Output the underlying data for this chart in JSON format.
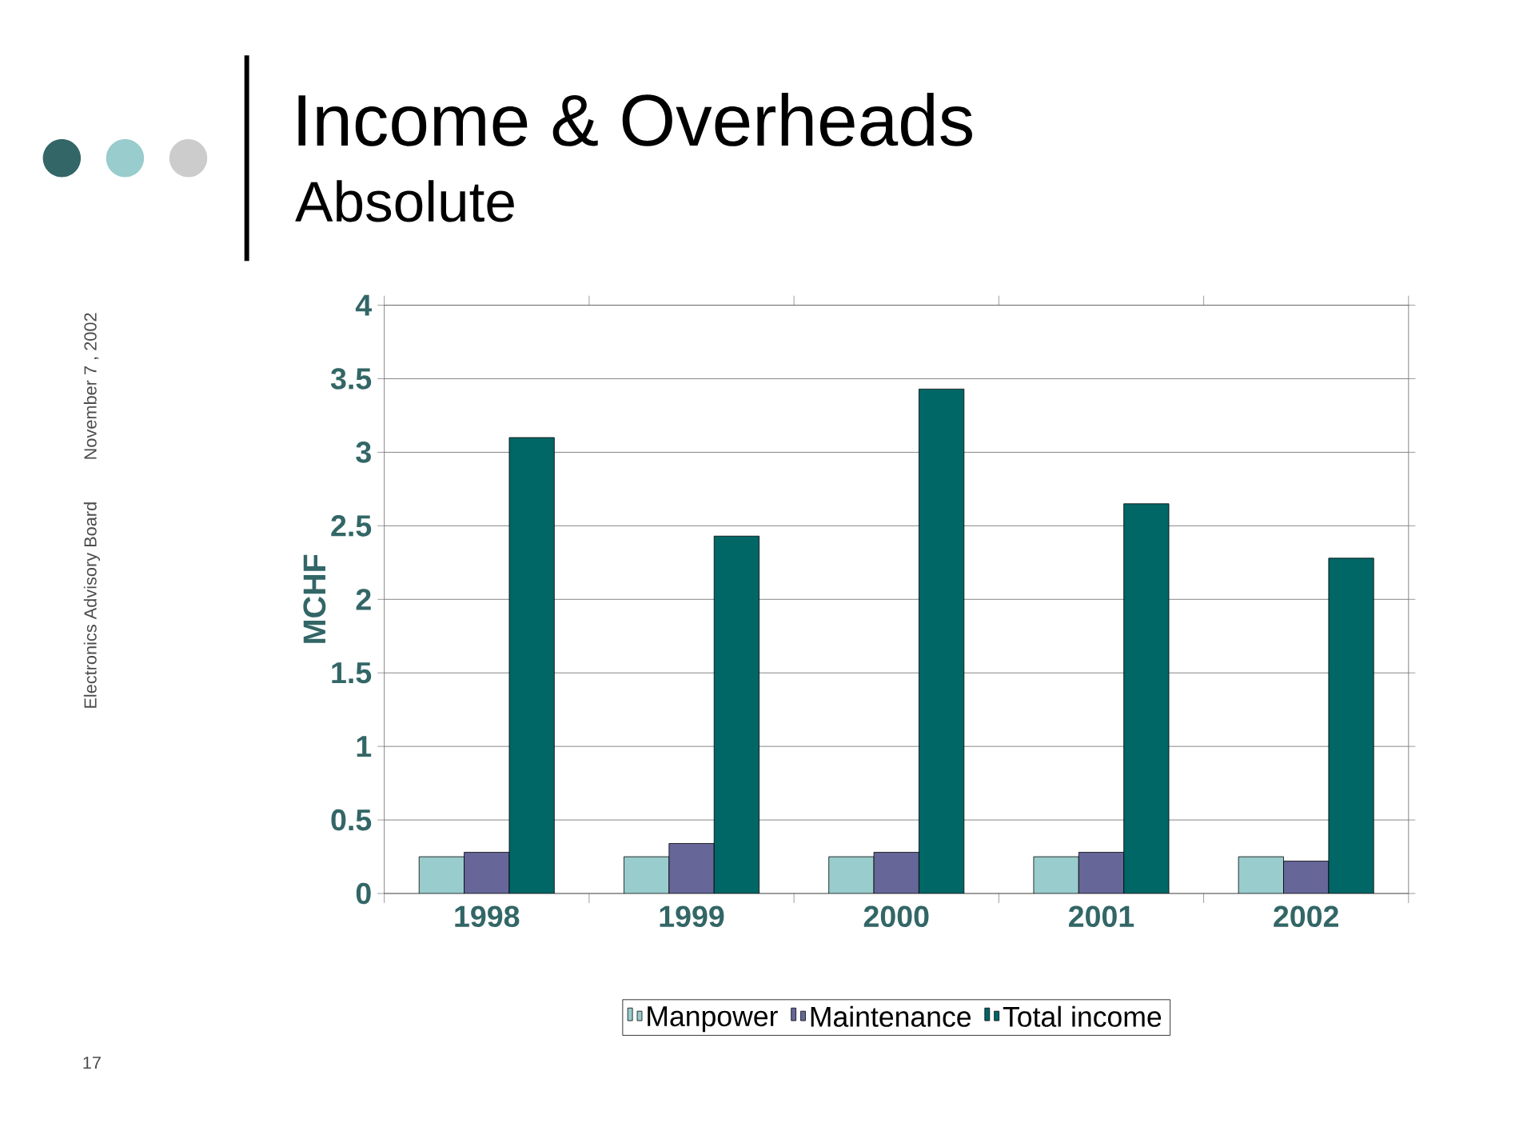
{
  "chart_data": {
    "type": "bar",
    "title": "Income & Overheads",
    "subtitle": "Absolute",
    "ylabel": "MCHF",
    "categories": [
      "1998",
      "1999",
      "2000",
      "2001",
      "2002"
    ],
    "series": [
      {
        "name": "Manpower",
        "color": "#99cccc",
        "values": [
          0.25,
          0.25,
          0.25,
          0.25,
          0.25
        ]
      },
      {
        "name": "Maintenance",
        "color": "#666699",
        "values": [
          0.28,
          0.34,
          0.28,
          0.28,
          0.22
        ]
      },
      {
        "name": "Total income",
        "color": "#006666",
        "values": [
          3.1,
          2.43,
          3.43,
          2.65,
          2.28
        ]
      }
    ],
    "ylim": [
      0,
      4
    ],
    "yticks": [
      0,
      0.5,
      1,
      1.5,
      2,
      2.5,
      3,
      3.5,
      4
    ],
    "grid": "y",
    "legend": "bottom",
    "annotations": [
      "Electronics Advisory Board",
      "November 7 , 2002",
      "17"
    ]
  }
}
